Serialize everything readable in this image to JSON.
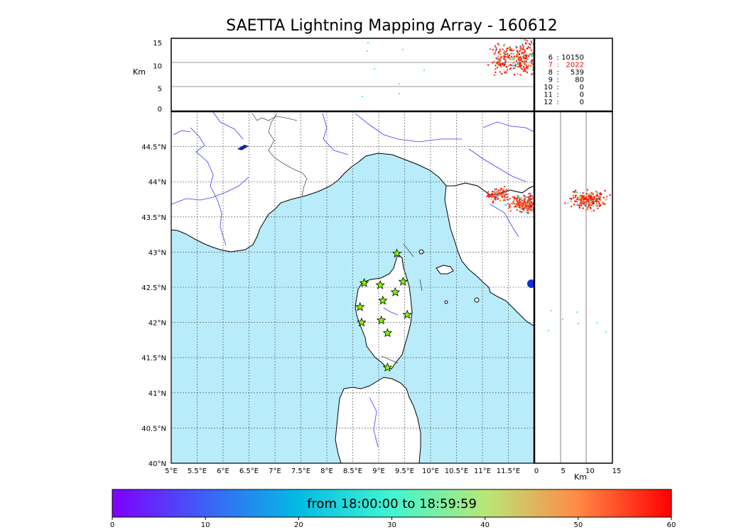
{
  "title": "SAETTA Lightning Mapping Array - 160612",
  "colors": {
    "sea": "#b9ecfb",
    "land": "#ffffff",
    "rivers": "#3a3aff",
    "borders": "#555555",
    "star_fill": "#7fff00",
    "highlight_count": "#ff0000"
  },
  "map": {
    "lon_range": [
      5,
      12
    ],
    "lat_range": [
      40,
      45
    ],
    "lon_ticks": [
      "5°E",
      "5.5°E",
      "6°E",
      "6.5°E",
      "7°E",
      "7.5°E",
      "8°E",
      "8.5°E",
      "9°E",
      "9.5°E",
      "10°E",
      "10.5°E",
      "11°E",
      "11.5°E"
    ],
    "lat_ticks": [
      "40°N",
      "40.5°N",
      "41°N",
      "41.5°N",
      "42°N",
      "42.5°N",
      "43°N",
      "43.5°N",
      "44°N",
      "44.5°N"
    ],
    "grid": "dotted"
  },
  "top_panel": {
    "ylabel": "Km",
    "y_range": [
      0,
      15
    ],
    "y_ticks": [
      "0",
      "5",
      "10",
      "15"
    ]
  },
  "side_panel": {
    "xlabel": "Km",
    "x_range": [
      0,
      15
    ],
    "x_ticks": [
      "0",
      "5",
      "10",
      "15"
    ]
  },
  "counts": [
    {
      "label": "6",
      "value": "10150",
      "highlight": false
    },
    {
      "label": "7",
      "value": "2022",
      "highlight": true
    },
    {
      "label": "8",
      "value": "539",
      "highlight": false
    },
    {
      "label": "9",
      "value": "80",
      "highlight": false
    },
    {
      "label": "10",
      "value": "0",
      "highlight": false
    },
    {
      "label": "11",
      "value": "0",
      "highlight": false
    },
    {
      "label": "12",
      "value": "0",
      "highlight": false
    }
  ],
  "stations": [
    [
      9.35,
      42.98
    ],
    [
      8.72,
      42.56
    ],
    [
      9.03,
      42.53
    ],
    [
      9.47,
      42.58
    ],
    [
      9.32,
      42.43
    ],
    [
      9.08,
      42.31
    ],
    [
      8.64,
      42.22
    ],
    [
      9.55,
      42.11
    ],
    [
      8.67,
      42.0
    ],
    [
      9.05,
      42.03
    ],
    [
      9.17,
      41.85
    ],
    [
      9.17,
      41.36
    ]
  ],
  "colorbar": {
    "label": "from 18:00:00 to 18:59:59",
    "range": [
      0,
      60
    ],
    "ticks": [
      "0",
      "10",
      "20",
      "30",
      "40",
      "50",
      "60"
    ]
  }
}
